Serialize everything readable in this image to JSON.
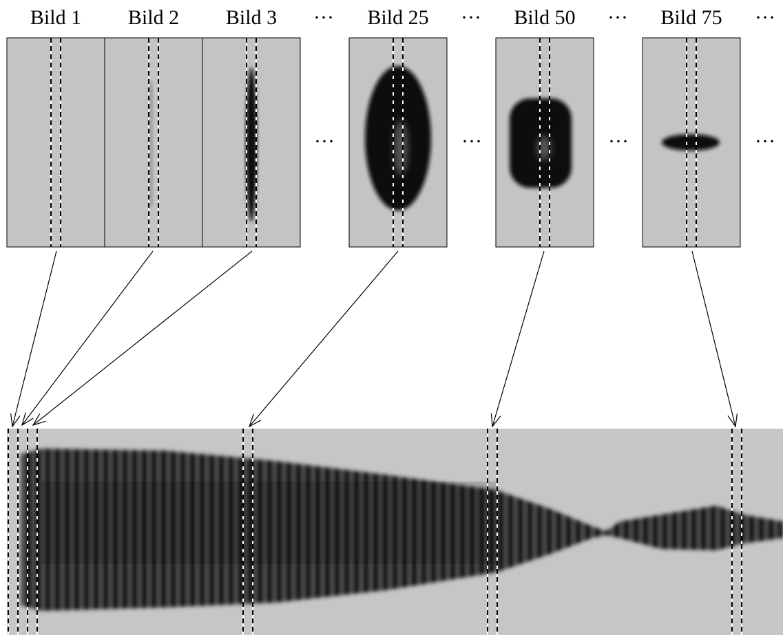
{
  "frames": [
    {
      "label": "Bild 1"
    },
    {
      "label": "Bild 2"
    },
    {
      "label": "Bild 3"
    },
    {
      "label": "Bild 25"
    },
    {
      "label": "Bild 50"
    },
    {
      "label": "Bild 75"
    }
  ],
  "ellipses_top": [
    "···",
    "···",
    "···",
    "···"
  ],
  "ellipses_mid": [
    "···",
    "···",
    "···",
    "···"
  ]
}
